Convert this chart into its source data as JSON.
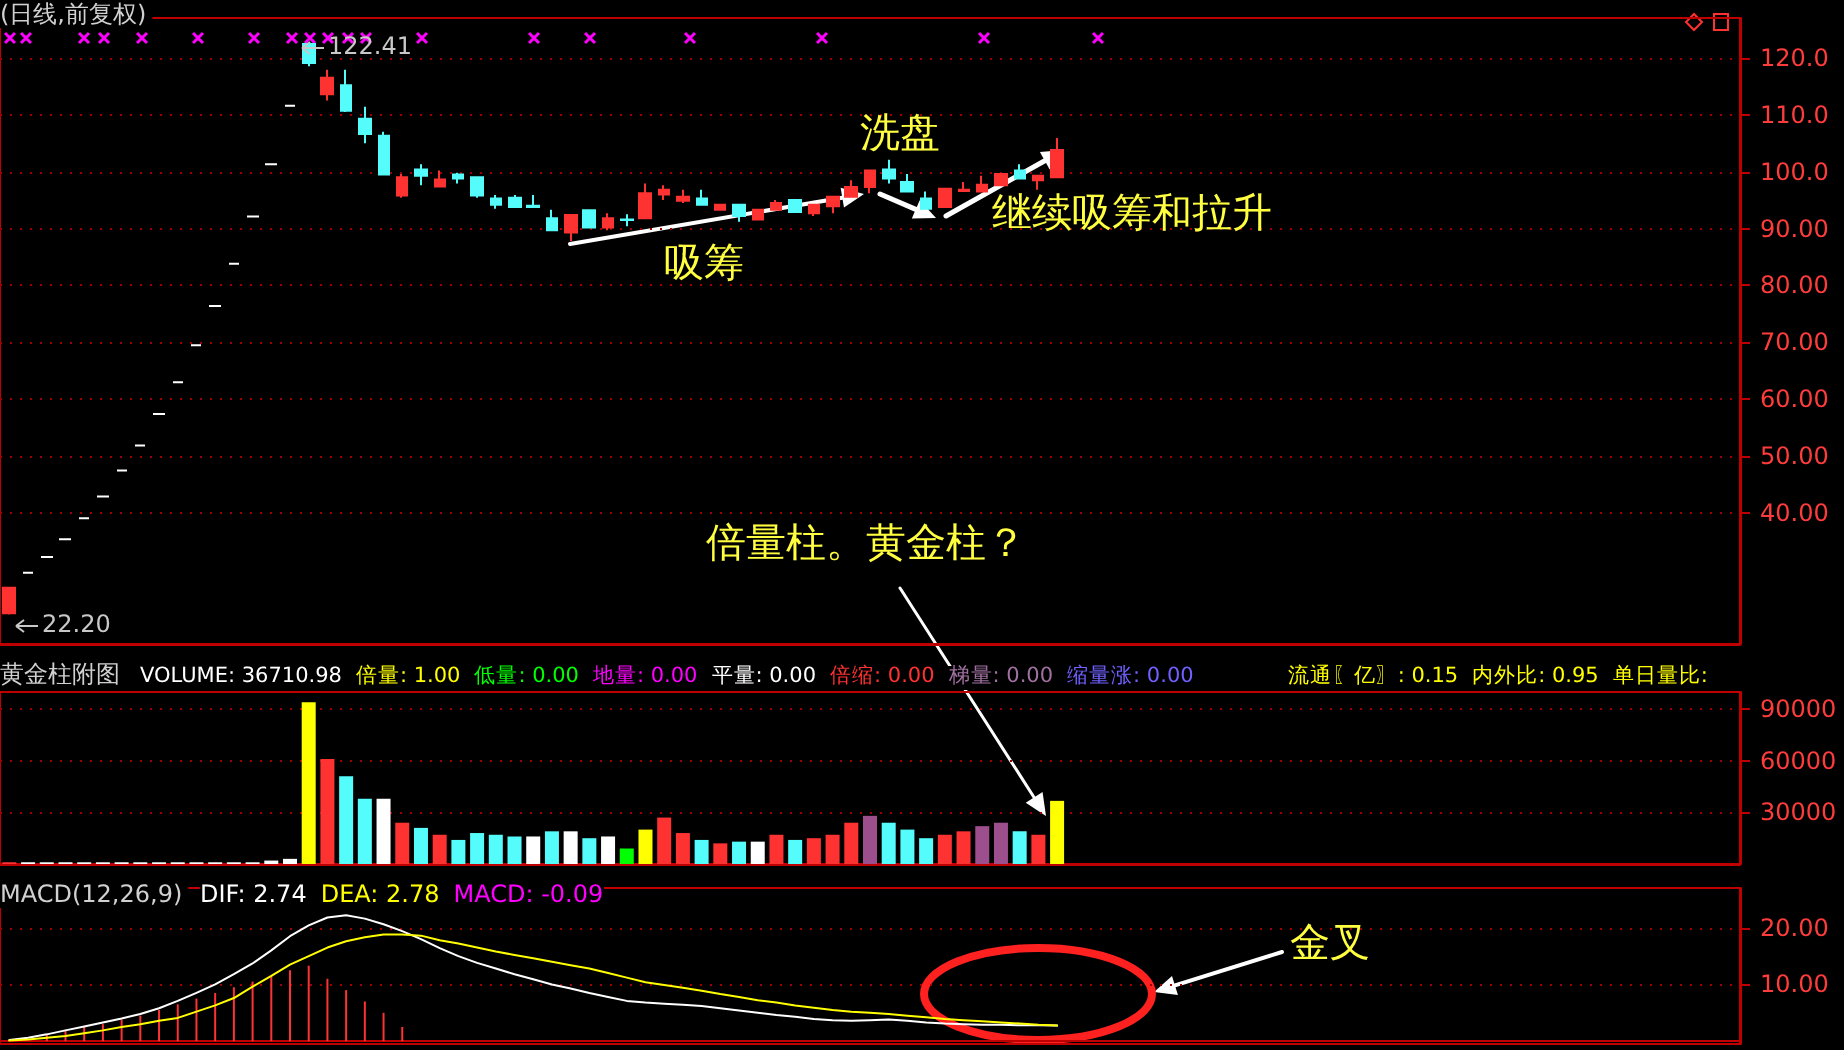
{
  "chart_data": [
    {
      "type": "candlestick",
      "title": "(日线,前复权)",
      "categories": [
        null,
        null,
        null,
        null,
        null,
        null,
        null,
        null,
        null,
        null,
        null,
        null,
        null,
        null,
        null,
        null,
        null,
        null,
        null,
        null,
        null,
        null,
        null,
        null,
        null,
        null,
        null,
        null,
        null,
        null,
        null,
        null,
        null,
        null,
        null,
        null,
        null,
        null,
        null,
        null,
        null,
        null,
        null,
        null,
        null,
        null,
        null,
        null,
        null,
        null,
        null,
        null,
        null,
        null,
        null,
        null,
        null,
        null,
        null,
        null,
        null,
        null,
        null,
        null,
        null,
        null,
        null,
        null,
        null,
        null,
        null,
        null,
        null,
        null,
        null,
        null,
        null,
        null,
        null,
        null,
        null,
        null,
        null,
        null,
        null,
        null,
        null,
        null,
        null,
        null,
        null,
        null,
        null
      ],
      "ohlc": [
        [
          22.4,
          26.9,
          22.2,
          26.9
        ],
        [
          29.5,
          29.5,
          29.5,
          29.5
        ],
        [
          32.3,
          32.3,
          32.3,
          32.3
        ],
        [
          35.4,
          35.4,
          35.4,
          35.4
        ],
        [
          39.1,
          39.1,
          39.1,
          39.1
        ],
        [
          42.9,
          42.9,
          42.9,
          42.9
        ],
        [
          47.5,
          47.5,
          47.5,
          47.5
        ],
        [
          51.9,
          51.9,
          51.9,
          51.9
        ],
        [
          57.4,
          57.4,
          57.4,
          57.4
        ],
        [
          63.0,
          63.0,
          63.0,
          63.0
        ],
        [
          69.5,
          69.5,
          69.5,
          69.5
        ],
        [
          76.4,
          76.4,
          76.4,
          76.4
        ],
        [
          83.8,
          83.8,
          83.8,
          83.8
        ],
        [
          92.1,
          92.1,
          92.1,
          92.1
        ],
        [
          101.3,
          101.3,
          101.3,
          101.3
        ],
        [
          111.6,
          111.6,
          111.6,
          111.6
        ],
        [
          122.41,
          122.41,
          118.5,
          119.1
        ],
        [
          113.6,
          117.9,
          112.5,
          116.5
        ],
        [
          115.2,
          117.9,
          110.5,
          110.7
        ],
        [
          109.3,
          111.4,
          105.0,
          106.6
        ],
        [
          106.3,
          107.0,
          99.5,
          99.5
        ],
        [
          95.8,
          99.6,
          95.4,
          99.0
        ],
        [
          100.4,
          101.3,
          97.6,
          99.3
        ],
        [
          97.4,
          100.2,
          97.4,
          98.6
        ],
        [
          99.5,
          99.8,
          97.9,
          98.8
        ],
        [
          99.0,
          99.0,
          95.4,
          95.8
        ],
        [
          95.3,
          95.9,
          93.5,
          94.2
        ],
        [
          95.4,
          95.9,
          93.8,
          93.8
        ],
        [
          94.0,
          95.9,
          93.8,
          93.8
        ],
        [
          91.8,
          93.3,
          89.7,
          89.7
        ],
        [
          89.3,
          92.4,
          87.8,
          92.4
        ],
        [
          93.2,
          93.2,
          90.2,
          90.2
        ],
        [
          90.2,
          92.7,
          89.7,
          91.8
        ],
        [
          91.6,
          92.5,
          90.4,
          91.5
        ],
        [
          91.8,
          97.9,
          91.8,
          96.2
        ],
        [
          96.0,
          97.6,
          95.0,
          96.8
        ],
        [
          94.9,
          96.8,
          94.5,
          95.6
        ],
        [
          95.3,
          96.8,
          94.2,
          94.2
        ],
        [
          93.3,
          94.2,
          93.3,
          94.2
        ],
        [
          94.2,
          94.2,
          91.2,
          92.2
        ],
        [
          91.6,
          93.3,
          91.6,
          93.3
        ],
        [
          93.3,
          95.0,
          93.3,
          94.5
        ],
        [
          95.0,
          95.0,
          92.9,
          92.9
        ],
        [
          92.7,
          94.2,
          92.2,
          94.2
        ],
        [
          93.9,
          95.6,
          92.7,
          95.6
        ],
        [
          95.6,
          98.5,
          95.6,
          97.3
        ],
        [
          97.3,
          100.2,
          96.2,
          100.2
        ],
        [
          100.4,
          102.1,
          97.9,
          98.8
        ],
        [
          98.2,
          99.6,
          96.5,
          96.5
        ],
        [
          95.3,
          96.5,
          93.5,
          93.5
        ],
        [
          93.8,
          97.0,
          93.8,
          97.0
        ],
        [
          96.6,
          98.2,
          96.6,
          96.8
        ],
        [
          96.5,
          99.3,
          96.5,
          97.7
        ],
        [
          97.6,
          99.6,
          97.6,
          99.6
        ],
        [
          100.2,
          101.3,
          98.8,
          98.8
        ],
        [
          98.5,
          99.3,
          96.8,
          99.3
        ],
        [
          99.0,
          105.9,
          99.0,
          103.8
        ],
        null,
        null,
        null,
        null,
        null,
        null,
        null,
        null,
        null,
        null,
        null,
        null,
        null,
        null,
        null,
        null,
        null,
        null,
        null,
        null,
        null,
        null,
        null,
        null,
        null,
        null,
        null,
        null,
        null,
        null,
        null,
        null,
        null,
        null,
        null,
        null
      ],
      "colors": [
        "#ff3232",
        "#ffffff",
        "#ffffff",
        "#ffffff",
        "#ffffff",
        "#ffffff",
        "#ffffff",
        "#ffffff",
        "#ffffff",
        "#ffffff",
        "#ffffff",
        "#ffffff",
        "#ffffff",
        "#ffffff",
        "#ffffff",
        "#ffffff",
        "#54fcfc",
        "#ff3232",
        "#54fcfc",
        "#54fcfc",
        "#54fcfc",
        "#ff3232",
        "#54fcfc",
        "#ff3232",
        "#54fcfc",
        "#54fcfc",
        "#54fcfc",
        "#54fcfc",
        "#54fcfc",
        "#54fcfc",
        "#ff3232",
        "#54fcfc",
        "#ff3232",
        "#54fcfc",
        "#ff3232",
        "#ff3232",
        "#ff3232",
        "#54fcfc",
        "#ff3232",
        "#54fcfc",
        "#ff3232",
        "#ff3232",
        "#54fcfc",
        "#ff3232",
        "#ff3232",
        "#ff3232",
        "#ff3232",
        "#54fcfc",
        "#54fcfc",
        "#54fcfc",
        "#ff3232",
        "#ff3232",
        "#ff3232",
        "#ff3232",
        "#54fcfc",
        "#ff3232",
        "#ff3232",
        null,
        null,
        null,
        null,
        null,
        null,
        null,
        null,
        null,
        null,
        null,
        null,
        null,
        null,
        null,
        null,
        null,
        null,
        null,
        null,
        null,
        null,
        null,
        null,
        null,
        null,
        null,
        null,
        null,
        null,
        null,
        null,
        null,
        null,
        null,
        null
      ],
      "ylim": [
        17,
        127
      ],
      "yticks": [
        {
          "value": 40,
          "label": "40.00"
        },
        {
          "value": 50,
          "label": "50.00"
        },
        {
          "value": 60,
          "label": "60.00"
        },
        {
          "value": 70,
          "label": "70.00"
        },
        {
          "value": 80,
          "label": "80.00"
        },
        {
          "value": 90,
          "label": "90.00"
        },
        {
          "value": 100,
          "label": "100.0"
        },
        {
          "value": 110,
          "label": "110.0"
        },
        {
          "value": 120,
          "label": "120.0"
        }
      ],
      "grid": "y",
      "annotations": [
        "122.41",
        "22.20",
        "吸筹",
        "洗盘",
        "继续吸筹和拉升",
        "倍量柱。黄金柱？"
      ]
    },
    {
      "type": "bar",
      "title": "黄金柱附图",
      "categories": [
        null,
        null,
        null,
        null,
        null,
        null,
        null,
        null,
        null,
        null,
        null,
        null,
        null,
        null,
        null,
        null,
        null,
        null,
        null,
        null,
        null,
        null,
        null,
        null,
        null,
        null,
        null,
        null,
        null,
        null,
        null,
        null,
        null,
        null,
        null,
        null,
        null,
        null,
        null,
        null,
        null,
        null,
        null,
        null,
        null,
        null,
        null,
        null,
        null,
        null,
        null,
        null,
        null,
        null,
        null,
        null,
        null,
        null,
        null,
        null,
        null,
        null,
        null,
        null,
        null,
        null,
        null,
        null,
        null,
        null,
        null,
        null,
        null,
        null,
        null,
        null,
        null,
        null,
        null,
        null,
        null,
        null,
        null,
        null,
        null,
        null,
        null,
        null,
        null,
        null,
        null,
        null,
        null
      ],
      "series": [
        {
          "values": [
            1000,
            1000,
            1000,
            1000,
            1000,
            1000,
            1000,
            1000,
            1000,
            1000,
            1000,
            1000,
            1000,
            1000,
            2000,
            3000,
            94000,
            61000,
            51000,
            38000,
            38000,
            24000,
            21000,
            17000,
            14000,
            18000,
            17000,
            16000,
            16000,
            19000,
            19000,
            15000,
            16000,
            9000,
            20000,
            27000,
            18000,
            14000,
            12000,
            13000,
            13000,
            17000,
            14000,
            15000,
            17000,
            24000,
            28000,
            24000,
            20000,
            15000,
            17000,
            19000,
            22000,
            24000,
            19000,
            17000,
            36710.98,
            null,
            null,
            null,
            null,
            null,
            null,
            null,
            null,
            null,
            null,
            null,
            null,
            null,
            null,
            null,
            null,
            null,
            null,
            null,
            null,
            null,
            null,
            null,
            null,
            null,
            null,
            null,
            null,
            null,
            null,
            null,
            null,
            null,
            null,
            null,
            null
          ],
          "colors": [
            "#ff3232",
            "#ffffff",
            "#ffffff",
            "#ffffff",
            "#ffffff",
            "#ffffff",
            "#ffffff",
            "#ffffff",
            "#ffffff",
            "#ffffff",
            "#ffffff",
            "#ffffff",
            "#ffffff",
            "#ffffff",
            "#ffffff",
            "#ffffff",
            "#ffff00",
            "#ff3232",
            "#54fcfc",
            "#54fcfc",
            "#ffffff",
            "#ff3232",
            "#54fcfc",
            "#ff3232",
            "#54fcfc",
            "#54fcfc",
            "#54fcfc",
            "#54fcfc",
            "#ffffff",
            "#54fcfc",
            "#ffffff",
            "#54fcfc",
            "#ffffff",
            "#00ff00",
            "#ffff00",
            "#ff3232",
            "#ff3232",
            "#54fcfc",
            "#ff3232",
            "#54fcfc",
            "#ffffff",
            "#ff3232",
            "#54fcfc",
            "#ff3232",
            "#ff3232",
            "#ff3232",
            "#9c4f8c",
            "#54fcfc",
            "#54fcfc",
            "#54fcfc",
            "#ff3232",
            "#ff3232",
            "#9c4f8c",
            "#9c4f8c",
            "#54fcfc",
            "#ff3232",
            "#ffff00",
            null,
            null,
            null,
            null,
            null,
            null,
            null,
            null,
            null,
            null,
            null,
            null,
            null,
            null,
            null,
            null,
            null,
            null,
            null,
            null,
            null,
            null,
            null,
            null,
            null,
            null,
            null,
            null,
            null,
            null,
            null,
            null,
            null,
            null,
            null,
            null
          ]
        }
      ],
      "ylim": [
        0,
        100000
      ],
      "yticks": [
        30000,
        60000,
        90000
      ],
      "grid": "y",
      "annotations": [
        "VOLUME: 36710.98",
        "倍量: 1.00",
        "低量: 0.00",
        "地量: 0.00",
        "平量: 0.00",
        "倍缩: 0.00",
        "梯量: 0.00",
        "缩量涨: 0.00",
        "流通〖亿〗: 0.15",
        "内外比: 0.95",
        "单日量比:"
      ]
    },
    {
      "type": "line",
      "title": "MACD(12,26,9)",
      "categories": [
        null,
        null,
        null,
        null,
        null,
        null,
        null,
        null,
        null,
        null,
        null,
        null,
        null,
        null,
        null,
        null,
        null,
        null,
        null,
        null,
        null,
        null,
        null,
        null,
        null,
        null,
        null,
        null,
        null,
        null,
        null,
        null,
        null,
        null,
        null,
        null,
        null,
        null,
        null,
        null,
        null,
        null,
        null,
        null,
        null,
        null,
        null,
        null,
        null,
        null,
        null,
        null,
        null,
        null,
        null,
        null,
        null,
        null,
        null,
        null,
        null,
        null,
        null,
        null,
        null,
        null,
        null,
        null,
        null,
        null,
        null,
        null,
        null,
        null,
        null,
        null,
        null,
        null,
        null,
        null,
        null,
        null,
        null,
        null,
        null,
        null,
        null,
        null,
        null,
        null,
        null,
        null,
        null
      ],
      "series": [
        {
          "color": "#ffffff",
          "values": [
            0.2,
            0.6,
            1.2,
            1.9,
            2.6,
            3.3,
            4.0,
            4.8,
            5.8,
            7.1,
            8.5,
            10.0,
            11.8,
            13.7,
            16.0,
            18.5,
            20.4,
            21.8,
            22.2,
            21.6,
            20.6,
            19.4,
            18.0,
            16.4,
            15.0,
            13.8,
            12.8,
            11.8,
            10.9,
            10.0,
            9.3,
            8.5,
            7.8,
            7.1,
            6.8,
            6.6,
            6.4,
            6.2,
            5.8,
            5.4,
            5.0,
            4.6,
            4.3,
            3.9,
            3.7,
            3.6,
            3.7,
            3.8,
            3.6,
            3.3,
            3.1,
            3.0,
            2.9,
            2.9,
            2.8,
            2.8,
            2.74,
            null,
            null,
            null,
            null,
            null,
            null,
            null,
            null,
            null,
            null,
            null,
            null,
            null,
            null,
            null,
            null,
            null,
            null,
            null,
            null,
            null,
            null,
            null,
            null,
            null,
            null,
            null,
            null,
            null,
            null,
            null,
            null,
            null,
            null,
            null,
            null
          ]
        },
        {
          "color": "#ffff00",
          "values": [
            0.1,
            0.3,
            0.6,
            0.9,
            1.4,
            1.9,
            2.5,
            3.0,
            3.6,
            4.1,
            5.2,
            6.3,
            7.6,
            9.6,
            11.5,
            13.5,
            15.0,
            16.5,
            17.6,
            18.3,
            18.8,
            18.8,
            18.6,
            17.8,
            17.2,
            16.5,
            15.8,
            15.2,
            14.6,
            14.0,
            13.4,
            12.8,
            12.0,
            11.2,
            10.4,
            9.9,
            9.4,
            8.9,
            8.3,
            7.8,
            7.2,
            6.8,
            6.3,
            5.9,
            5.5,
            5.2,
            5.0,
            4.8,
            4.5,
            4.2,
            3.9,
            3.7,
            3.5,
            3.3,
            3.1,
            2.9,
            2.78,
            null,
            null,
            null,
            null,
            null,
            null,
            null,
            null,
            null,
            null,
            null,
            null,
            null,
            null,
            null,
            null,
            null,
            null,
            null,
            null,
            null,
            null,
            null,
            null,
            null,
            null,
            null,
            null,
            null,
            null,
            null,
            null,
            null,
            null,
            null,
            null
          ]
        },
        {
          "type": "bar",
          "color": "#ff3232",
          "values": [
            null,
            null,
            1.2,
            2.0,
            2.5,
            3.0,
            3.8,
            4.5,
            5.5,
            6.5,
            7.5,
            8.5,
            9.5,
            10.5,
            11.5,
            12.5,
            13.3,
            11.0,
            9.0,
            7.0,
            5.0,
            2.5,
            null,
            null,
            null,
            null,
            null,
            null,
            null,
            null,
            null,
            null,
            null,
            null,
            null,
            null,
            null,
            null,
            null,
            null,
            null,
            null,
            null,
            null,
            null,
            null,
            null,
            null,
            null,
            null,
            null,
            null,
            null,
            null,
            null,
            null,
            null,
            null,
            null,
            null,
            null,
            null,
            null,
            null,
            null,
            null,
            null,
            null,
            null,
            null,
            null,
            null,
            null,
            null,
            null,
            null,
            null,
            null,
            null,
            null,
            null,
            null,
            null,
            null,
            null,
            null,
            null,
            null,
            null,
            null,
            null,
            null,
            null
          ]
        }
      ],
      "ylim": [
        -0.5,
        27
      ],
      "yticks": [
        {
          "value": 10,
          "label": "10.00"
        },
        {
          "value": 20,
          "label": "20.00"
        }
      ],
      "grid": "y",
      "marker": "none",
      "line_style": "solid",
      "annotations": [
        "DIF: 2.74",
        "DEA: 2.78",
        "MACD: -0.09",
        "金叉"
      ]
    }
  ]
}
